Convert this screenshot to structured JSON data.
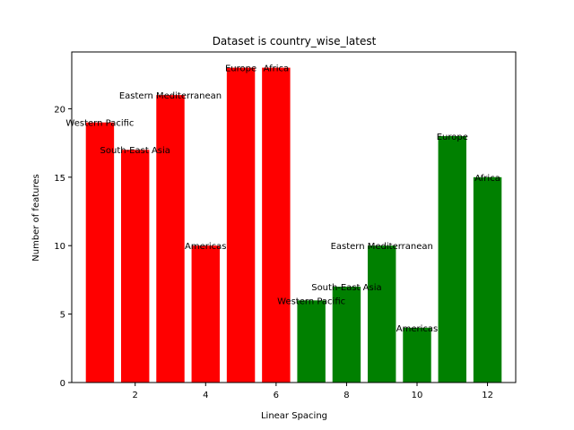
{
  "chart_data": {
    "type": "bar",
    "title": "Dataset is country_wise_latest",
    "xlabel": "Linear Spacing",
    "ylabel": "Number of features",
    "xlim": [
      0.2,
      12.8
    ],
    "ylim": [
      0,
      24.15
    ],
    "xticks": [
      2,
      4,
      6,
      8,
      10,
      12
    ],
    "yticks": [
      0,
      5,
      10,
      15,
      20
    ],
    "grid": false,
    "bar_width": 0.8,
    "series": [
      {
        "color": "#ff0000",
        "x": [
          1,
          2,
          3,
          4,
          5,
          6
        ],
        "labels": [
          "Western Pacific",
          "South-East Asia",
          "Eastern Mediterranean",
          "Americas",
          "Europe",
          "Africa"
        ],
        "values": [
          19,
          17,
          21,
          10,
          23,
          23
        ]
      },
      {
        "color": "#008000",
        "x": [
          7,
          8,
          9,
          10,
          11,
          12
        ],
        "labels": [
          "Western Pacific",
          "South-East Asia",
          "Eastern Mediterranean",
          "Americas",
          "Europe",
          "Africa"
        ],
        "values": [
          6,
          7,
          10,
          4,
          18,
          15
        ]
      }
    ]
  }
}
